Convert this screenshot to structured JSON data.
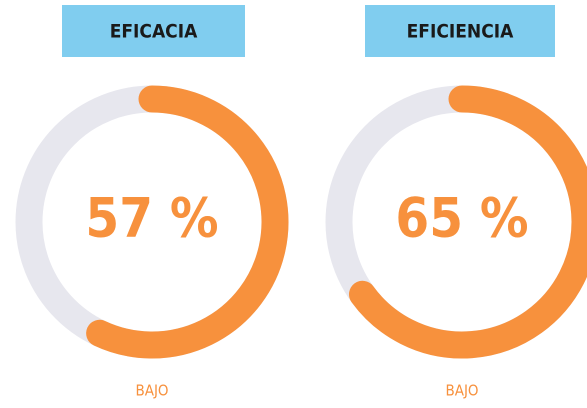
{
  "chart_data": [
    {
      "type": "donut",
      "title": "EFICACIA",
      "values": [
        57
      ],
      "value_labels": [
        "57 %"
      ],
      "ylim": [
        0,
        100
      ],
      "color": "#f7913d",
      "track_color": "#e7e7ee",
      "title_color": "#80cdef",
      "annotation": "BAJO"
    },
    {
      "type": "donut",
      "title": "EFICIENCIA",
      "values": [
        65
      ],
      "value_labels": [
        "65 %"
      ],
      "ylim": [
        0,
        100
      ],
      "color": "#f7913d",
      "track_color": "#e7e7ee",
      "title_color": "#80cdef",
      "annotation": "BAJO"
    }
  ]
}
